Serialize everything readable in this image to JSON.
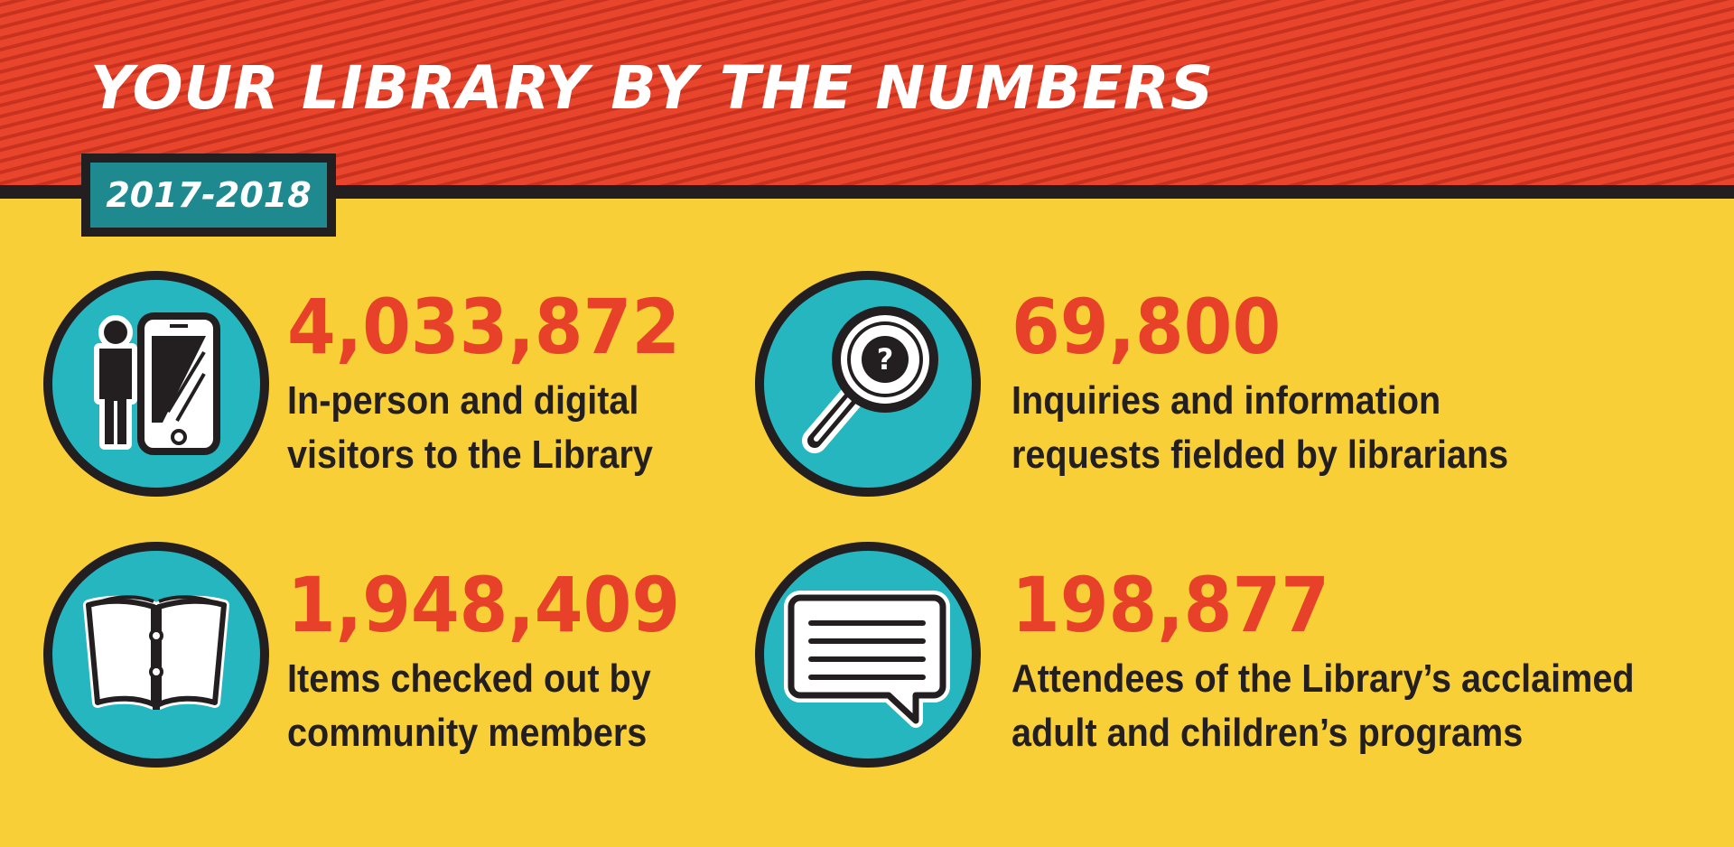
{
  "header": {
    "title": "YOUR LIBRARY BY THE NUMBERS",
    "year": "2017-2018"
  },
  "colors": {
    "background": "#f9cf37",
    "header_red": "#e33d26",
    "number_red": "#e8412a",
    "icon_teal": "#25b6bf",
    "badge_teal": "#1e8a8f",
    "outline": "#231f20"
  },
  "stats": [
    {
      "icon": "person-phone-icon",
      "number": "4,033,872",
      "line1": "In-person and digital",
      "line2": "visitors to the Library"
    },
    {
      "icon": "magnifier-question-icon",
      "number": "69,800",
      "line1": "Inquiries and information",
      "line2": "requests fielded by librarians"
    },
    {
      "icon": "open-book-icon",
      "number": "1,948,409",
      "line1": "Items checked out by",
      "line2": "community members"
    },
    {
      "icon": "speech-bubble-icon",
      "number": "198,877",
      "line1": "Attendees of the Library’s acclaimed",
      "line2": "adult and children’s programs"
    }
  ]
}
